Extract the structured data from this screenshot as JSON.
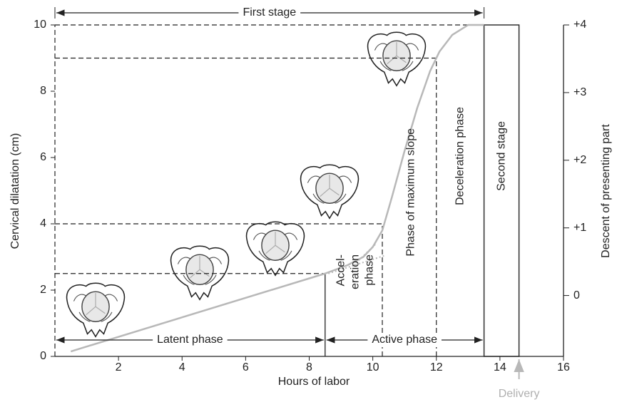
{
  "chart_data": {
    "type": "line",
    "xlabel": "Hours of labor",
    "ylabel": "Cervical dilatation (cm)",
    "y2label": "Descent of presenting part",
    "xlim": [
      0,
      16
    ],
    "xticks": [
      2,
      4,
      6,
      8,
      10,
      12,
      14,
      16
    ],
    "ylim": [
      0,
      10
    ],
    "yticks": [
      0,
      2,
      4,
      6,
      8,
      10
    ],
    "y2lim": [
      -0.9,
      4
    ],
    "y2ticks": [
      {
        "value": 4,
        "label": "+4"
      },
      {
        "value": 3,
        "label": "+3"
      },
      {
        "value": 2,
        "label": "+2"
      },
      {
        "value": 1,
        "label": "+1"
      },
      0
    ],
    "series": [
      {
        "color": "#b8b8b8",
        "x": [
          0.5,
          8.5,
          9.2,
          9.7,
          10.0,
          10.3,
          10.6,
          11.0,
          11.4,
          11.8,
          12.1,
          12.5,
          13.0,
          13.5
        ],
        "values": [
          0.15,
          2.5,
          2.75,
          3.0,
          3.3,
          3.8,
          4.8,
          6.2,
          7.5,
          8.6,
          9.2,
          9.7,
          10,
          10
        ]
      },
      {
        "color": "#b8b8b8",
        "dashed": true,
        "x": [
          8.6,
          10.4
        ],
        "values": [
          2.5,
          3.05
        ]
      },
      {
        "color": "#b8b8b8",
        "dashed": true,
        "x": [
          9.4,
          10.1
        ],
        "values": [
          2.75,
          3.4
        ]
      }
    ],
    "guides": [
      {
        "x": [
          0,
          13.5
        ],
        "y": [
          10,
          10
        ]
      },
      {
        "x": [
          0,
          12
        ],
        "y": [
          9,
          9
        ]
      },
      {
        "x": [
          0,
          10.3
        ],
        "y": [
          4,
          4
        ]
      },
      {
        "x": [
          0,
          8.5
        ],
        "y": [
          2.5,
          2.5
        ]
      },
      {
        "x": [
          12,
          12
        ],
        "y": [
          0,
          9
        ]
      },
      {
        "x": [
          10.3,
          10.3
        ],
        "y": [
          0,
          4
        ]
      },
      {
        "x": [
          0,
          0
        ],
        "y": [
          0,
          10
        ]
      }
    ],
    "dividers": [
      {
        "x": [
          8.5,
          8.5
        ],
        "y": [
          0,
          2.5
        ]
      }
    ],
    "second_stage_box": {
      "x": [
        13.5,
        14.6
      ],
      "y": [
        0,
        10
      ]
    },
    "spans": [
      {
        "label": "First stage",
        "x": [
          0,
          13.5
        ]
      },
      {
        "label": "Latent phase",
        "x": [
          0,
          8.5
        ]
      },
      {
        "label": "Active phase",
        "x": [
          8.5,
          13.5
        ]
      }
    ],
    "phases": [
      {
        "lines": [
          "Accel-",
          "eration",
          "phase"
        ]
      },
      {
        "lines": [
          "Phase of maximum slope"
        ]
      },
      {
        "lines": [
          "Deceleration phase"
        ]
      },
      {
        "lines": [
          "Second stage"
        ]
      }
    ],
    "delivery": {
      "label": "Delivery",
      "x": 14.6
    }
  }
}
